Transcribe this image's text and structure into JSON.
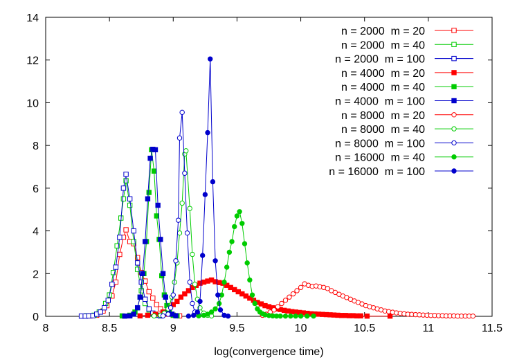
{
  "chart_data": {
    "type": "line",
    "title": "",
    "xlabel": "log(convergence time)",
    "ylabel": "",
    "xlim": [
      8,
      11.5
    ],
    "ylim": [
      0,
      14
    ],
    "xticks": [
      "8",
      "8.5",
      "9",
      "9.5",
      "10",
      "10.5",
      "11",
      "11.5"
    ],
    "yticks": [
      "0",
      "2",
      "4",
      "6",
      "8",
      "10",
      "12",
      "14"
    ],
    "grid": false,
    "legend_position": "top-right",
    "series": [
      {
        "name": "n = 2000  m = 20",
        "color": "#ff0000",
        "marker": "open-square",
        "points": [
          [
            8.35,
            0.02
          ],
          [
            8.4,
            0.05
          ],
          [
            8.45,
            0.25
          ],
          [
            8.48,
            0.5
          ],
          [
            8.52,
            0.95
          ],
          [
            8.55,
            1.6
          ],
          [
            8.58,
            2.9
          ],
          [
            8.61,
            3.7
          ],
          [
            8.63,
            4.05
          ],
          [
            8.66,
            3.5
          ],
          [
            8.69,
            3.4
          ],
          [
            8.72,
            2.75
          ],
          [
            8.75,
            2.05
          ],
          [
            8.78,
            1.65
          ],
          [
            8.81,
            1.15
          ],
          [
            8.84,
            0.85
          ],
          [
            8.87,
            0.55
          ],
          [
            8.9,
            0.35
          ],
          [
            8.93,
            0.2
          ],
          [
            8.96,
            0.1
          ],
          [
            9.0,
            0.05
          ],
          [
            9.05,
            0.02
          ]
        ]
      },
      {
        "name": "n = 2000  m = 40",
        "color": "#00cc00",
        "marker": "open-square",
        "points": [
          [
            8.32,
            0.02
          ],
          [
            8.38,
            0.05
          ],
          [
            8.42,
            0.2
          ],
          [
            8.47,
            0.6
          ],
          [
            8.5,
            1.0
          ],
          [
            8.53,
            2.05
          ],
          [
            8.56,
            3.3
          ],
          [
            8.59,
            4.6
          ],
          [
            8.61,
            5.5
          ],
          [
            8.63,
            6.35
          ],
          [
            8.66,
            5.2
          ],
          [
            8.69,
            3.5
          ],
          [
            8.72,
            2.2
          ],
          [
            8.75,
            1.2
          ],
          [
            8.78,
            0.6
          ],
          [
            8.81,
            0.3
          ],
          [
            8.84,
            0.12
          ],
          [
            8.87,
            0.05
          ]
        ]
      },
      {
        "name": "n = 2000  m = 100",
        "color": "#0000cc",
        "marker": "open-square",
        "points": [
          [
            8.28,
            0.01
          ],
          [
            8.31,
            0.01
          ],
          [
            8.34,
            0.02
          ],
          [
            8.37,
            0.03
          ],
          [
            8.4,
            0.1
          ],
          [
            8.43,
            0.2
          ],
          [
            8.46,
            0.4
          ],
          [
            8.49,
            0.75
          ],
          [
            8.52,
            1.5
          ],
          [
            8.55,
            2.3
          ],
          [
            8.58,
            3.7
          ],
          [
            8.61,
            6.0
          ],
          [
            8.63,
            6.65
          ],
          [
            8.66,
            5.5
          ],
          [
            8.69,
            4.0
          ],
          [
            8.72,
            2.5
          ],
          [
            8.75,
            1.6
          ],
          [
            8.78,
            0.8
          ],
          [
            8.81,
            0.35
          ],
          [
            8.84,
            0.15
          ],
          [
            8.87,
            0.05
          ],
          [
            8.9,
            0.02
          ]
        ]
      },
      {
        "name": "n = 4000  m = 20",
        "color": "#ff0000",
        "marker": "filled-square",
        "points": [
          [
            8.74,
            0.02
          ],
          [
            8.8,
            0.05
          ],
          [
            8.86,
            0.1
          ],
          [
            8.92,
            0.2
          ],
          [
            8.96,
            0.35
          ],
          [
            9.0,
            0.55
          ],
          [
            9.03,
            0.7
          ],
          [
            9.06,
            0.9
          ],
          [
            9.09,
            1.05
          ],
          [
            9.12,
            1.2
          ],
          [
            9.15,
            1.35
          ],
          [
            9.18,
            1.45
          ],
          [
            9.21,
            1.55
          ],
          [
            9.24,
            1.6
          ],
          [
            9.27,
            1.65
          ],
          [
            9.3,
            1.7
          ],
          [
            9.33,
            1.62
          ],
          [
            9.36,
            1.58
          ],
          [
            9.39,
            1.55
          ],
          [
            9.42,
            1.45
          ],
          [
            9.45,
            1.35
          ],
          [
            9.48,
            1.25
          ],
          [
            9.51,
            1.15
          ],
          [
            9.54,
            1.05
          ],
          [
            9.57,
            0.95
          ],
          [
            9.6,
            0.85
          ],
          [
            9.63,
            0.75
          ],
          [
            9.66,
            0.65
          ],
          [
            9.69,
            0.58
          ],
          [
            9.72,
            0.5
          ],
          [
            9.75,
            0.45
          ],
          [
            9.78,
            0.4
          ],
          [
            9.81,
            0.35
          ],
          [
            9.84,
            0.32
          ],
          [
            9.87,
            0.28
          ],
          [
            9.9,
            0.25
          ],
          [
            9.93,
            0.22
          ],
          [
            9.96,
            0.2
          ],
          [
            9.99,
            0.18
          ],
          [
            10.02,
            0.16
          ],
          [
            10.05,
            0.14
          ],
          [
            10.08,
            0.12
          ],
          [
            10.11,
            0.11
          ],
          [
            10.14,
            0.1
          ],
          [
            10.17,
            0.09
          ],
          [
            10.2,
            0.08
          ],
          [
            10.23,
            0.07
          ],
          [
            10.26,
            0.06
          ],
          [
            10.29,
            0.05
          ],
          [
            10.32,
            0.04
          ],
          [
            10.35,
            0.04
          ],
          [
            10.38,
            0.03
          ],
          [
            10.41,
            0.03
          ],
          [
            10.44,
            0.02
          ],
          [
            10.47,
            0.02
          ],
          [
            10.52,
            0.01
          ],
          [
            10.7,
            0.01
          ]
        ]
      },
      {
        "name": "n = 4000  m = 40",
        "color": "#00cc00",
        "marker": "filled-square",
        "points": [
          [
            8.6,
            0.02
          ],
          [
            8.66,
            0.05
          ],
          [
            8.7,
            0.2
          ],
          [
            8.72,
            0.4
          ],
          [
            8.74,
            0.9
          ],
          [
            8.77,
            2.0
          ],
          [
            8.79,
            3.5
          ],
          [
            8.81,
            5.8
          ],
          [
            8.83,
            7.8
          ],
          [
            8.85,
            6.8
          ],
          [
            8.87,
            4.7
          ],
          [
            8.89,
            3.6
          ],
          [
            8.91,
            1.9
          ],
          [
            8.93,
            1.0
          ],
          [
            8.95,
            0.5
          ],
          [
            8.97,
            0.2
          ],
          [
            9.0,
            0.05
          ],
          [
            9.03,
            0.02
          ]
        ]
      },
      {
        "name": "n = 4000  m = 100",
        "color": "#0000cc",
        "marker": "filled-square",
        "points": [
          [
            8.62,
            0.01
          ],
          [
            8.66,
            0.02
          ],
          [
            8.69,
            0.1
          ],
          [
            8.72,
            0.4
          ],
          [
            8.74,
            0.9
          ],
          [
            8.76,
            2.0
          ],
          [
            8.78,
            3.5
          ],
          [
            8.8,
            5.5
          ],
          [
            8.82,
            7.4
          ],
          [
            8.84,
            7.82
          ],
          [
            8.86,
            7.8
          ],
          [
            8.88,
            5.2
          ],
          [
            8.9,
            3.6
          ],
          [
            8.92,
            2.0
          ],
          [
            8.94,
            0.9
          ],
          [
            8.96,
            0.3
          ],
          [
            8.99,
            0.1
          ],
          [
            9.02,
            0.03
          ]
        ]
      },
      {
        "name": "n = 8000  m = 20",
        "color": "#ff0000",
        "marker": "open-circle",
        "points": [
          [
            9.7,
            0.05
          ],
          [
            9.73,
            0.1
          ],
          [
            9.76,
            0.2
          ],
          [
            9.79,
            0.3
          ],
          [
            9.82,
            0.45
          ],
          [
            9.85,
            0.6
          ],
          [
            9.88,
            0.75
          ],
          [
            9.91,
            0.9
          ],
          [
            9.94,
            1.05
          ],
          [
            9.97,
            1.2
          ],
          [
            10.0,
            1.35
          ],
          [
            10.03,
            1.52
          ],
          [
            10.06,
            1.45
          ],
          [
            10.09,
            1.4
          ],
          [
            10.12,
            1.42
          ],
          [
            10.15,
            1.38
          ],
          [
            10.18,
            1.35
          ],
          [
            10.21,
            1.3
          ],
          [
            10.24,
            1.2
          ],
          [
            10.27,
            1.12
          ],
          [
            10.3,
            1.03
          ],
          [
            10.33,
            0.95
          ],
          [
            10.36,
            0.88
          ],
          [
            10.39,
            0.8
          ],
          [
            10.42,
            0.72
          ],
          [
            10.45,
            0.65
          ],
          [
            10.48,
            0.58
          ],
          [
            10.51,
            0.5
          ],
          [
            10.54,
            0.45
          ],
          [
            10.57,
            0.4
          ],
          [
            10.6,
            0.35
          ],
          [
            10.63,
            0.3
          ],
          [
            10.66,
            0.25
          ],
          [
            10.69,
            0.22
          ],
          [
            10.72,
            0.19
          ],
          [
            10.75,
            0.16
          ],
          [
            10.78,
            0.14
          ],
          [
            10.81,
            0.12
          ],
          [
            10.84,
            0.1
          ],
          [
            10.87,
            0.09
          ],
          [
            10.9,
            0.08
          ],
          [
            10.93,
            0.07
          ],
          [
            10.96,
            0.06
          ],
          [
            10.99,
            0.05
          ],
          [
            11.02,
            0.04
          ],
          [
            11.05,
            0.04
          ],
          [
            11.08,
            0.03
          ],
          [
            11.11,
            0.03
          ],
          [
            11.14,
            0.02
          ],
          [
            11.17,
            0.02
          ],
          [
            11.2,
            0.02
          ],
          [
            11.23,
            0.01
          ],
          [
            11.26,
            0.01
          ],
          [
            11.29,
            0.01
          ],
          [
            11.32,
            0.01
          ],
          [
            11.35,
            0.01
          ]
        ]
      },
      {
        "name": "n = 8000  m = 40",
        "color": "#00cc00",
        "marker": "open-circle",
        "points": [
          [
            8.85,
            0.02
          ],
          [
            8.9,
            0.05
          ],
          [
            8.93,
            0.15
          ],
          [
            8.96,
            0.35
          ],
          [
            8.99,
            0.9
          ],
          [
            9.01,
            1.6
          ],
          [
            9.03,
            2.5
          ],
          [
            9.05,
            3.9
          ],
          [
            9.07,
            5.3
          ],
          [
            9.09,
            7.6
          ],
          [
            9.1,
            7.75
          ],
          [
            9.13,
            5.05
          ],
          [
            9.15,
            2.9
          ],
          [
            9.17,
            1.5
          ],
          [
            9.19,
            0.8
          ],
          [
            9.21,
            0.4
          ],
          [
            9.24,
            0.15
          ],
          [
            9.27,
            0.05
          ],
          [
            9.3,
            0.02
          ]
        ]
      },
      {
        "name": "n = 8000  m = 100",
        "color": "#0000cc",
        "marker": "open-circle",
        "points": [
          [
            8.92,
            0.02
          ],
          [
            8.96,
            0.1
          ],
          [
            8.98,
            0.4
          ],
          [
            9.0,
            1.0
          ],
          [
            9.02,
            2.6
          ],
          [
            9.04,
            4.5
          ],
          [
            9.05,
            8.35
          ],
          [
            9.07,
            9.55
          ],
          [
            9.09,
            6.7
          ],
          [
            9.11,
            3.9
          ],
          [
            9.13,
            1.6
          ],
          [
            9.15,
            0.6
          ],
          [
            9.17,
            0.2
          ],
          [
            9.2,
            0.05
          ]
        ]
      },
      {
        "name": "n = 16000  m = 40",
        "color": "#00cc00",
        "marker": "filled-circle",
        "points": [
          [
            9.2,
            0.02
          ],
          [
            9.24,
            0.05
          ],
          [
            9.27,
            0.1
          ],
          [
            9.3,
            0.2
          ],
          [
            9.33,
            0.35
          ],
          [
            9.36,
            0.6
          ],
          [
            9.38,
            1.0
          ],
          [
            9.4,
            1.6
          ],
          [
            9.42,
            2.3
          ],
          [
            9.44,
            3.0
          ],
          [
            9.46,
            3.5
          ],
          [
            9.48,
            4.2
          ],
          [
            9.5,
            4.7
          ],
          [
            9.52,
            4.9
          ],
          [
            9.54,
            4.35
          ],
          [
            9.56,
            3.4
          ],
          [
            9.58,
            2.5
          ],
          [
            9.6,
            1.7
          ],
          [
            9.62,
            1.0
          ],
          [
            9.64,
            0.6
          ],
          [
            9.66,
            0.35
          ],
          [
            9.68,
            0.2
          ],
          [
            9.7,
            0.12
          ],
          [
            9.72,
            0.07
          ],
          [
            9.75,
            0.04
          ],
          [
            9.78,
            0.02
          ],
          [
            9.81,
            0.01
          ],
          [
            9.84,
            0.01
          ],
          [
            9.88,
            0.01
          ],
          [
            9.92,
            0.01
          ],
          [
            9.96,
            0.01
          ],
          [
            10.0,
            0.01
          ],
          [
            10.05,
            0.01
          ],
          [
            10.1,
            0.01
          ]
        ]
      },
      {
        "name": "n = 16000  m = 100",
        "color": "#0000cc",
        "marker": "filled-circle",
        "points": [
          [
            9.12,
            0.01
          ],
          [
            9.16,
            0.05
          ],
          [
            9.19,
            0.2
          ],
          [
            9.21,
            0.7
          ],
          [
            9.23,
            2.85
          ],
          [
            9.25,
            5.7
          ],
          [
            9.27,
            8.6
          ],
          [
            9.29,
            12.05
          ],
          [
            9.31,
            6.3
          ],
          [
            9.33,
            2.6
          ],
          [
            9.35,
            1.0
          ],
          [
            9.37,
            0.3
          ],
          [
            9.4,
            0.05
          ],
          [
            9.43,
            0.01
          ]
        ]
      }
    ]
  }
}
